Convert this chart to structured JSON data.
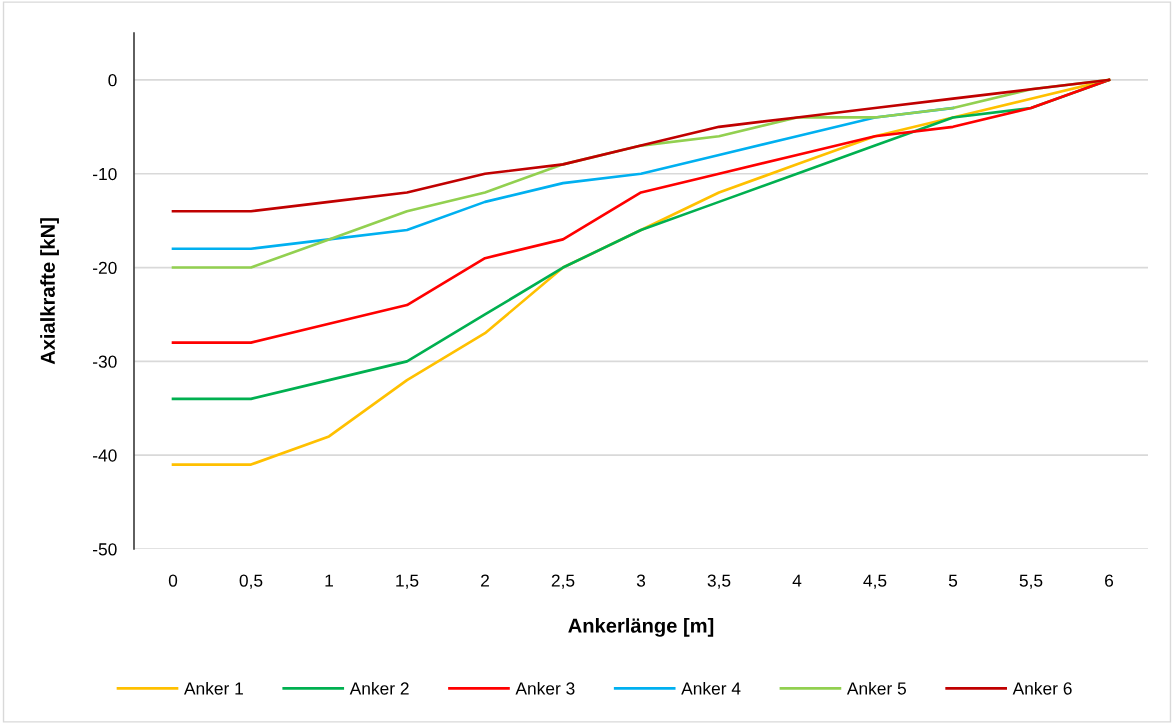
{
  "chart_data": {
    "type": "line",
    "xlabel": "Ankerlänge [m]",
    "ylabel": "Axialkrafte [kN]",
    "categories": [
      "0",
      "0,5",
      "1",
      "1,5",
      "2",
      "2,5",
      "3",
      "3,5",
      "4",
      "4,5",
      "5",
      "5,5",
      "6"
    ],
    "series": [
      {
        "name": "Anker 1",
        "color": "#ffc000",
        "values": [
          -41,
          -41,
          -38,
          -32,
          -27,
          -20,
          -16,
          -12,
          -9,
          -6,
          -4,
          -2,
          0
        ]
      },
      {
        "name": "Anker 2",
        "color": "#00b050",
        "values": [
          -34,
          -34,
          -32,
          -30,
          -25,
          -20,
          -16,
          -13,
          -10,
          -7,
          -4,
          -3,
          0
        ]
      },
      {
        "name": "Anker 3",
        "color": "#ff0000",
        "values": [
          -28,
          -28,
          -26,
          -24,
          -19,
          -17,
          -12,
          -10,
          -8,
          -6,
          -5,
          -3,
          0
        ]
      },
      {
        "name": "Anker 4",
        "color": "#00b0f0",
        "values": [
          -18,
          -18,
          -17,
          -16,
          -13,
          -11,
          -10,
          -8,
          -6,
          -4,
          -3,
          null,
          null
        ]
      },
      {
        "name": "Anker 5",
        "color": "#92d050",
        "values": [
          -20,
          -20,
          -17,
          -14,
          -12,
          -9,
          -7,
          -6,
          -4,
          -4,
          -3,
          -1,
          0
        ]
      },
      {
        "name": "Anker 6",
        "color": "#c00000",
        "values": [
          -14,
          -14,
          -13,
          -12,
          -10,
          -9,
          -7,
          -5,
          -4,
          -3,
          -2,
          -1,
          0
        ]
      }
    ],
    "ylim": [
      -50,
      5
    ],
    "yticks": [
      -50,
      -40,
      -30,
      -20,
      -10,
      0
    ],
    "grid": "y",
    "legend": "bottom"
  }
}
